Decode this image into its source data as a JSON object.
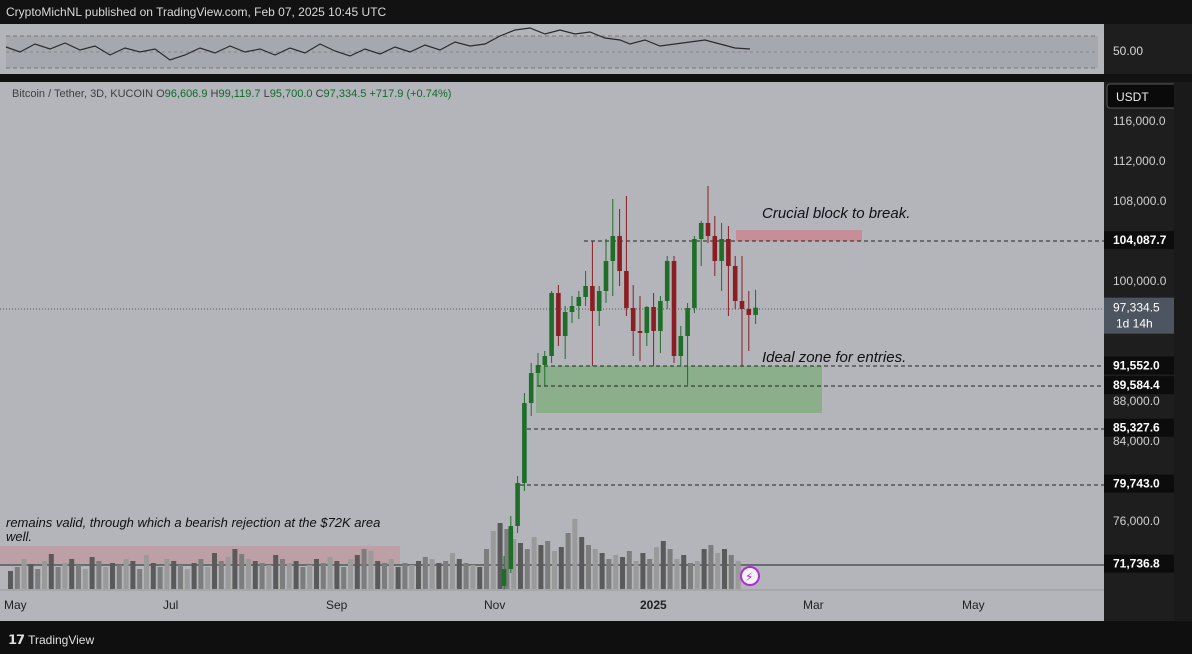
{
  "publisher_line": "CryptoMichNL published on TradingView.com, Feb 07, 2025 10:45 UTC",
  "brand": "TradingView",
  "legend": {
    "symbol": "Bitcoin / Tether, 3D, KUCOIN",
    "open_label": "O",
    "open": "96,606.9",
    "high_label": "H",
    "high": "99,119.7",
    "low_label": "L",
    "low": "95,700.0",
    "close_label": "C",
    "close": "97,334.5",
    "change": "+717.9 (+0.74%)"
  },
  "colors": {
    "up": "#1f6e28",
    "down": "#8b1e22",
    "chart_bg": "#b3b5bb",
    "zone_green": "#86ad86",
    "block_red": "#c98a93"
  },
  "chart_data": {
    "type": "candlestick",
    "currency_label": "USDT",
    "y_axis_ticks": [
      "116,000.0",
      "112,000.0",
      "108,000.0",
      "100,000.0",
      "88,000.0",
      "84,000.0",
      "76,000.0"
    ],
    "x_axis_ticks": [
      "May",
      "Jul",
      "Sep",
      "Nov",
      "2025",
      "Mar",
      "May"
    ],
    "price_labels": [
      {
        "value": "104,087.7",
        "style": "dark"
      },
      {
        "value": "97,334.5",
        "style": "current",
        "countdown": "1d 14h"
      },
      {
        "value": "91,552.0",
        "style": "dark"
      },
      {
        "value": "89,584.4",
        "style": "dark"
      },
      {
        "value": "85,327.6",
        "style": "dark"
      },
      {
        "value": "79,743.0",
        "style": "dark"
      },
      {
        "value": "71,736.8",
        "style": "dark"
      }
    ],
    "rsi_level_label": "50.00",
    "annotations": {
      "block": "Crucial block to break.",
      "zone": "Ideal zone for entries.",
      "note_line1": "remains valid, through which a bearish rejection at the $72K area",
      "note_line2": "well."
    },
    "candles": [
      {
        "o": 69500,
        "h": 72500,
        "l": 67500,
        "c": 71200
      },
      {
        "o": 71200,
        "h": 76500,
        "l": 70800,
        "c": 75500
      },
      {
        "o": 75500,
        "h": 80500,
        "l": 74800,
        "c": 79800
      },
      {
        "o": 79800,
        "h": 88800,
        "l": 79000,
        "c": 87800
      },
      {
        "o": 87800,
        "h": 91800,
        "l": 86500,
        "c": 90800
      },
      {
        "o": 90800,
        "h": 92800,
        "l": 89500,
        "c": 91600
      },
      {
        "o": 91600,
        "h": 93000,
        "l": 89500,
        "c": 92500
      },
      {
        "o": 92500,
        "h": 99000,
        "l": 91800,
        "c": 98800
      },
      {
        "o": 98800,
        "h": 99600,
        "l": 93500,
        "c": 94500
      },
      {
        "o": 94500,
        "h": 97500,
        "l": 92200,
        "c": 96900
      },
      {
        "o": 96900,
        "h": 98500,
        "l": 95800,
        "c": 97500
      },
      {
        "o": 97500,
        "h": 99000,
        "l": 96200,
        "c": 98400
      },
      {
        "o": 98400,
        "h": 101000,
        "l": 97500,
        "c": 99500
      },
      {
        "o": 99500,
        "h": 104000,
        "l": 91500,
        "c": 97000
      },
      {
        "o": 97000,
        "h": 99500,
        "l": 95500,
        "c": 99000
      },
      {
        "o": 99000,
        "h": 104200,
        "l": 97800,
        "c": 102000
      },
      {
        "o": 102000,
        "h": 108200,
        "l": 98500,
        "c": 104500
      },
      {
        "o": 104500,
        "h": 107200,
        "l": 99500,
        "c": 101000
      },
      {
        "o": 101000,
        "h": 108500,
        "l": 96500,
        "c": 97300
      },
      {
        "o": 97300,
        "h": 99600,
        "l": 92500,
        "c": 95000
      },
      {
        "o": 95000,
        "h": 98500,
        "l": 92000,
        "c": 94800
      },
      {
        "o": 94800,
        "h": 97500,
        "l": 93500,
        "c": 97400
      },
      {
        "o": 97400,
        "h": 98800,
        "l": 91500,
        "c": 95000
      },
      {
        "o": 95000,
        "h": 98500,
        "l": 92800,
        "c": 98000
      },
      {
        "o": 98000,
        "h": 102500,
        "l": 97200,
        "c": 102000
      },
      {
        "o": 102000,
        "h": 102500,
        "l": 91800,
        "c": 92500
      },
      {
        "o": 92500,
        "h": 95500,
        "l": 91500,
        "c": 94500
      },
      {
        "o": 94500,
        "h": 97800,
        "l": 89600,
        "c": 97300
      },
      {
        "o": 97300,
        "h": 104500,
        "l": 96800,
        "c": 104200
      },
      {
        "o": 104200,
        "h": 106000,
        "l": 101500,
        "c": 105800
      },
      {
        "o": 105800,
        "h": 109500,
        "l": 103800,
        "c": 104500
      },
      {
        "o": 104500,
        "h": 106500,
        "l": 100500,
        "c": 102000
      },
      {
        "o": 102000,
        "h": 105800,
        "l": 99000,
        "c": 104200
      },
      {
        "o": 104200,
        "h": 105500,
        "l": 96500,
        "c": 101500
      },
      {
        "o": 101500,
        "h": 102500,
        "l": 97200,
        "c": 98000
      },
      {
        "o": 98000,
        "h": 102500,
        "l": 91500,
        "c": 97200
      },
      {
        "o": 97200,
        "h": 99000,
        "l": 93000,
        "c": 96600
      },
      {
        "o": 96606.9,
        "h": 99119.7,
        "l": 95700,
        "c": 97334.5
      }
    ]
  }
}
